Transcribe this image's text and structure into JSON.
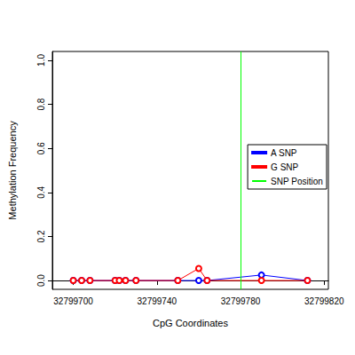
{
  "chart_data": {
    "type": "line",
    "x_label": "CpG Coordinates",
    "y_label": "Methylation Frequency",
    "x": [
      32799700,
      32799704,
      32799708,
      32799720,
      32799722,
      32799725,
      32799730,
      32799750,
      32799760,
      32799764,
      32799790,
      32799812
    ],
    "series": [
      {
        "name": "A SNP",
        "color": "#0000ff",
        "values": [
          0,
          0,
          0,
          0,
          0,
          0,
          0,
          0,
          0,
          0,
          0.025,
          0
        ]
      },
      {
        "name": "G SNP",
        "color": "#ff0000",
        "values": [
          0,
          0,
          0,
          0,
          0,
          0,
          0,
          0,
          0.055,
          0,
          0,
          0
        ]
      },
      {
        "name": "SNP Position",
        "type": "vline",
        "color": "#00ff00",
        "x": 32799780
      }
    ],
    "xlim": [
      32799690,
      32799822
    ],
    "xticks": [
      32799700,
      32799740,
      32799780,
      32799820
    ],
    "ylim": [
      -0.04,
      1.04
    ],
    "yticks": [
      {
        "value": 0,
        "label": "0.0"
      },
      {
        "value": 0.2,
        "label": "0.2"
      },
      {
        "value": 0.4,
        "label": "0.4"
      },
      {
        "value": 0.6,
        "label": "0.6"
      },
      {
        "value": 0.8,
        "label": "0.8"
      },
      {
        "value": 1,
        "label": "1.0"
      }
    ],
    "marker": "open_circle",
    "legend": "right",
    "grid": false
  }
}
